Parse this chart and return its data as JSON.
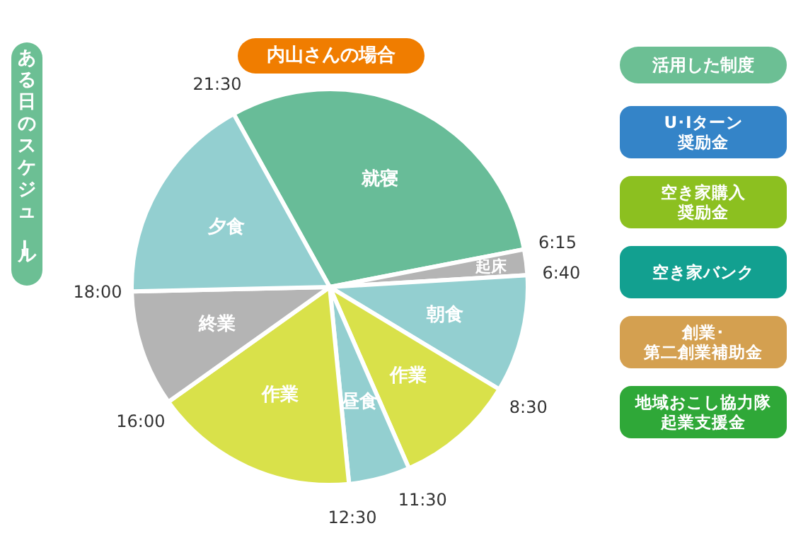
{
  "chart_data": [
    {
      "type": "pie",
      "title": "内山さんの場合",
      "ylabel": "ある日のスケジュール",
      "categories": [
        "就寝",
        "起床",
        "朝食",
        "作業",
        "昼食",
        "作業",
        "終業",
        "夕食"
      ],
      "values": [
        30.0,
        2.1,
        9.6,
        9.8,
        5.0,
        16.7,
        9.5,
        17.3
      ],
      "colors": [
        "#68bc98",
        "#b4b4b4",
        "#93cfd0",
        "#d9e14a",
        "#93cfd0",
        "#d9e14a",
        "#b4b4b4",
        "#93cfd0"
      ],
      "annotations": [
        "21:30",
        "6:15",
        "6:40",
        "8:30",
        "11:30",
        "12:30",
        "16:00",
        "18:00"
      ]
    },
    {
      "type": "other",
      "title": "活用した制度",
      "annotations": [
        "U･Iターン奨励金",
        "空き家購入奨励金",
        "空き家バンク",
        "創業･第二創業補助金",
        "地域おこし協力隊起業支援金"
      ],
      "colors": [
        "#3484c8",
        "#8cc020",
        "#12a090",
        "#d4a050",
        "#2fa838"
      ]
    }
  ]
}
